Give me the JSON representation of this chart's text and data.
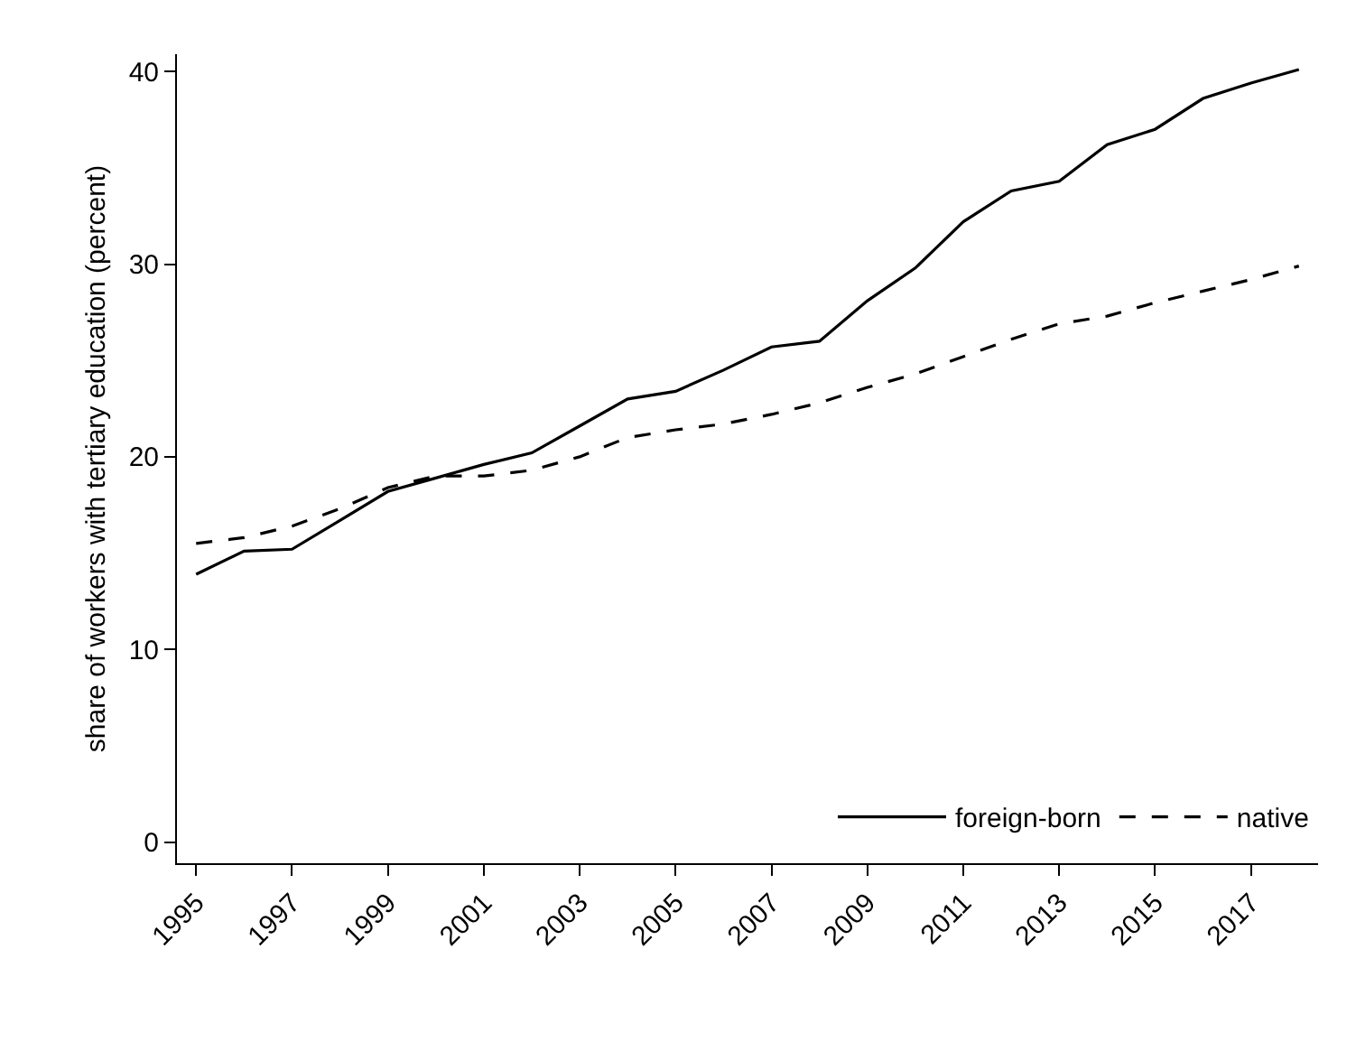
{
  "chart_data": {
    "type": "line",
    "ylabel": "share of workers with tertiary education (percent)",
    "x": [
      1995,
      1996,
      1997,
      1998,
      1999,
      2000,
      2001,
      2002,
      2003,
      2004,
      2005,
      2006,
      2007,
      2008,
      2009,
      2010,
      2011,
      2012,
      2013,
      2014,
      2015,
      2016,
      2017,
      2018
    ],
    "series": [
      {
        "name": "foreign-born",
        "color": "#000000",
        "line_style": "solid",
        "values": [
          13.9,
          15.1,
          15.2,
          16.7,
          18.2,
          18.9,
          19.6,
          20.2,
          21.6,
          23.0,
          23.4,
          24.5,
          25.7,
          26.0,
          28.1,
          29.8,
          32.2,
          33.8,
          34.3,
          36.2,
          37.0,
          38.6,
          39.4,
          40.1
        ]
      },
      {
        "name": "native",
        "color": "#000000",
        "line_style": "dashed",
        "values": [
          15.5,
          15.8,
          16.4,
          17.3,
          18.4,
          19.0,
          19.0,
          19.3,
          20.0,
          21.0,
          21.4,
          21.7,
          22.2,
          22.8,
          23.6,
          24.3,
          25.2,
          26.1,
          26.9,
          27.3,
          28.0,
          28.6,
          29.2,
          29.9
        ]
      }
    ],
    "xlim": [
      1994.6,
      2018.4
    ],
    "xticks": [
      1995,
      1997,
      1999,
      2001,
      2003,
      2005,
      2007,
      2009,
      2011,
      2013,
      2015,
      2017
    ],
    "ylim": [
      -1.1,
      40.9
    ],
    "yticks": [
      0,
      10,
      20,
      30,
      40
    ],
    "grid": false,
    "legend": "bottom right",
    "marker": "none"
  }
}
